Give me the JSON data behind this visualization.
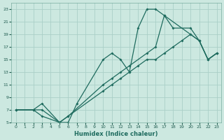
{
  "xlabel": "Humidex (Indice chaleur)",
  "bg_color": "#cce8e0",
  "grid_color": "#aacfc7",
  "line_color": "#1e6b5e",
  "xlim": [
    -0.5,
    23.5
  ],
  "ylim": [
    5,
    24
  ],
  "xticks": [
    0,
    1,
    2,
    3,
    4,
    5,
    6,
    7,
    8,
    9,
    10,
    11,
    12,
    13,
    14,
    15,
    16,
    17,
    18,
    19,
    20,
    21,
    22,
    23
  ],
  "yticks": [
    5,
    7,
    9,
    11,
    13,
    15,
    17,
    19,
    21,
    23
  ],
  "line1_x": [
    0,
    2,
    3,
    5,
    6,
    7,
    10,
    11,
    12,
    13,
    14,
    15,
    16,
    17,
    20,
    21,
    22,
    23
  ],
  "line1_y": [
    7,
    7,
    6,
    5,
    5,
    8,
    15,
    16,
    15,
    13,
    20,
    23,
    23,
    22,
    19,
    18,
    15,
    16
  ],
  "line2_x": [
    0,
    2,
    3,
    5,
    6,
    10,
    11,
    12,
    13,
    15,
    16,
    17,
    18,
    20,
    21,
    22,
    23
  ],
  "line2_y": [
    7,
    7,
    8,
    5,
    6,
    11,
    12,
    13,
    14,
    16,
    17,
    22,
    20,
    20,
    18,
    15,
    16
  ],
  "line3_x": [
    0,
    2,
    3,
    5,
    6,
    10,
    11,
    12,
    13,
    14,
    15,
    16,
    17,
    18,
    19,
    20,
    21,
    22,
    23
  ],
  "line3_y": [
    7,
    7,
    7,
    5,
    6,
    10,
    11,
    12,
    13,
    14,
    15,
    15,
    16,
    17,
    18,
    19,
    18,
    15,
    16
  ]
}
